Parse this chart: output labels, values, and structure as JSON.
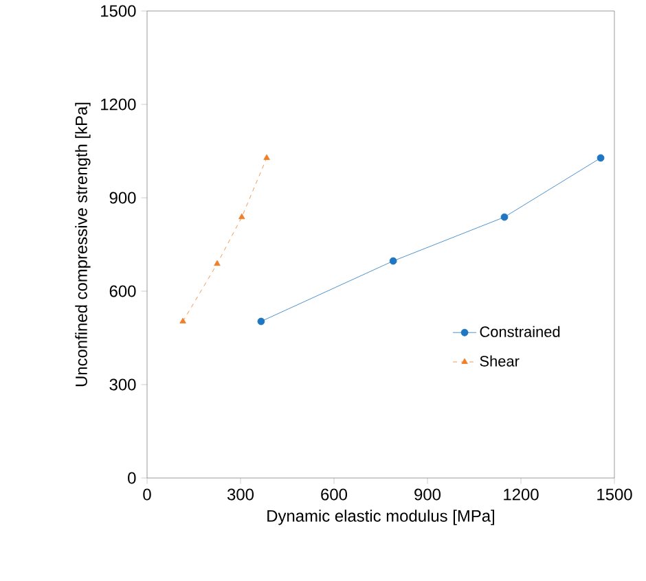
{
  "chart_data": {
    "type": "line",
    "xlabel": "Dynamic elastic modulus [MPa]",
    "ylabel": "Unconfined compressive strength [kPa]",
    "xlim": [
      0,
      1500
    ],
    "xticks": [
      0,
      300,
      600,
      900,
      1200,
      1500
    ],
    "ylim": [
      0,
      1500
    ],
    "yticks": [
      0,
      300,
      600,
      900,
      1200,
      1500
    ],
    "grid": false,
    "legend": "right",
    "series": [
      {
        "name": "Constrained",
        "color": "#1f77c4",
        "marker": "circle",
        "line_style": "solid",
        "x": [
          366,
          790,
          1147,
          1456
        ],
        "values": [
          503,
          697,
          838,
          1028
        ]
      },
      {
        "name": "Shear",
        "color": "#f07f2a",
        "marker": "triangle",
        "line_style": "dashed",
        "x": [
          115,
          225,
          304,
          384
        ],
        "values": [
          503,
          688,
          838,
          1028
        ]
      }
    ]
  }
}
